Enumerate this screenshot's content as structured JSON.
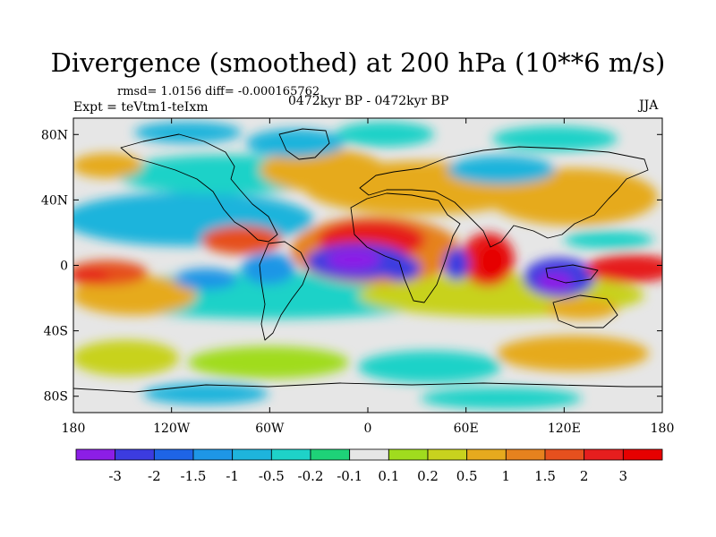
{
  "figure": {
    "title": "Divergence (smoothed) at 200 hPa (10**6 m/s)",
    "stats": "rmsd= 1.0156 diff= -0.000165762",
    "experiment": "Expt = teVtm1-teIxm",
    "period": "0472kyr BP - 0472kyr BP",
    "season": "JJA"
  },
  "map": {
    "y_ticks": [
      "80N",
      "40N",
      "0",
      "40S",
      "80S"
    ],
    "x_ticks": [
      "180",
      "120W",
      "60W",
      "0",
      "60E",
      "120E",
      "180"
    ],
    "y_tick_values": [
      80,
      40,
      0,
      -40,
      -80
    ],
    "x_tick_values": [
      -180,
      -120,
      -60,
      0,
      60,
      120,
      180
    ]
  },
  "colorbar": {
    "labels": [
      "-3",
      "-2",
      "-1.5",
      "-1",
      "-0.5",
      "-0.2",
      "-0.1",
      "0.1",
      "0.2",
      "0.5",
      "1",
      "1.5",
      "2",
      "3"
    ],
    "colors": [
      "#8c1ee6",
      "#3c3ce0",
      "#1e64e6",
      "#1e96e6",
      "#1eb4dc",
      "#1ed2c8",
      "#1ed278",
      "#e6e6e6",
      "#a0dc1e",
      "#c8d21e",
      "#e6aa1e",
      "#e6821e",
      "#e6501e",
      "#e61e1e",
      "#e60000"
    ]
  },
  "colors": {
    "neutral": "#e6e6e6",
    "coast": "#000000"
  }
}
